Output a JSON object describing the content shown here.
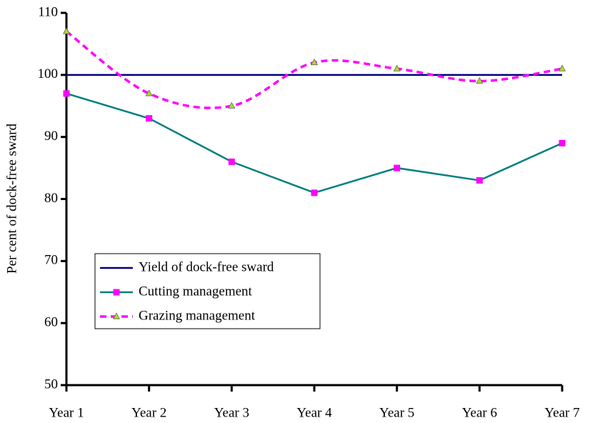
{
  "chart_data": {
    "type": "line",
    "y_label": "Per cent of dock-free sward",
    "categories": [
      "Year 1",
      "Year 2",
      "Year 3",
      "Year 4",
      "Year 5",
      "Year 6",
      "Year 7"
    ],
    "series": [
      {
        "name": "Yield of dock-free sward",
        "color": "#000080",
        "values": [
          100,
          100,
          100,
          100,
          100,
          100,
          100
        ]
      },
      {
        "name": "Cutting management",
        "color": "#008080",
        "marker": "square",
        "marker_color": "#ff00ff",
        "values": [
          97,
          93,
          86,
          81,
          85,
          83,
          89
        ]
      },
      {
        "name": "Grazing management",
        "color": "#ff00ff",
        "dashed": true,
        "smooth": true,
        "marker": "triangle",
        "marker_color": "#aadd22",
        "values": [
          107,
          97,
          95,
          102,
          101,
          99,
          101
        ]
      }
    ],
    "ylim": [
      50,
      110
    ],
    "yticks": [
      50,
      60,
      70,
      80,
      90,
      100,
      110
    ],
    "grid": false
  }
}
